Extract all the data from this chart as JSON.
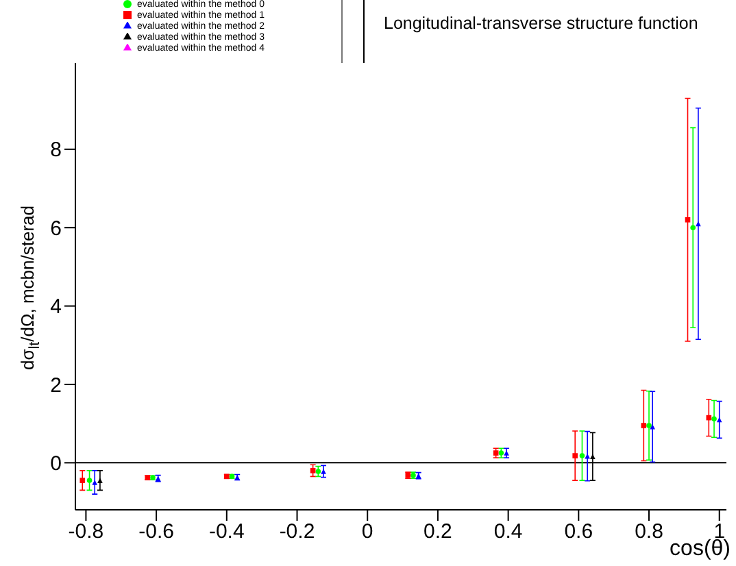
{
  "chart_data": {
    "type": "scatter",
    "title": "Longitudinal-transverse structure function",
    "xlabel": "cos(θ)",
    "ylabel": "dσ$_{lt}$/dΩ, mcbn/sterad",
    "xlim": [
      -0.83,
      1.02
    ],
    "xticks": [
      -0.8,
      -0.6,
      -0.4,
      -0.2,
      0,
      0.2,
      0.4,
      0.6,
      0.8,
      1
    ],
    "ylim": [
      -1.2,
      10.2
    ],
    "yticks": [
      0,
      2,
      4,
      6,
      8
    ],
    "grid": false,
    "legend": "top left",
    "ref_lines": [
      {
        "axis": "y",
        "value": 0,
        "color": "#000000"
      }
    ],
    "series": [
      {
        "name": "evaluated within the method 0",
        "color": "#00ff00",
        "marker": "circle",
        "x": [
          -0.79,
          -0.61,
          -0.385,
          -0.14,
          0.13,
          0.38,
          0.61,
          0.8,
          0.925,
          0.985
        ],
        "values": [
          -0.45,
          -0.38,
          -0.35,
          -0.22,
          -0.32,
          0.25,
          0.18,
          0.95,
          6.0,
          1.12
        ],
        "errors": [
          0.25,
          0.05,
          0.05,
          0.13,
          0.08,
          0.12,
          0.63,
          0.88,
          2.55,
          0.47
        ]
      },
      {
        "name": "evaluated within the method 1",
        "color": "#ff0000",
        "marker": "square",
        "x": [
          -0.81,
          -0.625,
          -0.4,
          -0.155,
          0.115,
          0.365,
          0.59,
          0.785,
          0.91,
          0.97
        ],
        "values": [
          -0.45,
          -0.38,
          -0.35,
          -0.2,
          -0.32,
          0.25,
          0.18,
          0.95,
          6.2,
          1.15
        ],
        "errors": [
          0.25,
          0.05,
          0.05,
          0.15,
          0.08,
          0.12,
          0.63,
          0.9,
          3.1,
          0.47
        ]
      },
      {
        "name": "evaluated within the method 2",
        "color": "#0000ff",
        "marker": "triangle",
        "x": [
          -0.775,
          -0.595,
          -0.37,
          -0.125,
          0.145,
          0.395,
          0.625,
          0.81,
          0.94,
          1.0
        ],
        "values": [
          -0.5,
          -0.4,
          -0.37,
          -0.22,
          -0.33,
          0.25,
          0.17,
          0.92,
          6.1,
          1.1
        ],
        "errors": [
          0.3,
          0.08,
          0.07,
          0.15,
          0.08,
          0.12,
          0.63,
          0.9,
          2.95,
          0.47
        ]
      },
      {
        "name": "evaluated within the method 3",
        "color": "#000000",
        "marker": "triangle",
        "x": [
          -0.76,
          0.64
        ],
        "values": [
          -0.45,
          0.16
        ],
        "errors": [
          0.25,
          0.61
        ]
      },
      {
        "name": "evaluated within the method 4",
        "color": "#ff00ff",
        "marker": "triangle"
      }
    ]
  }
}
